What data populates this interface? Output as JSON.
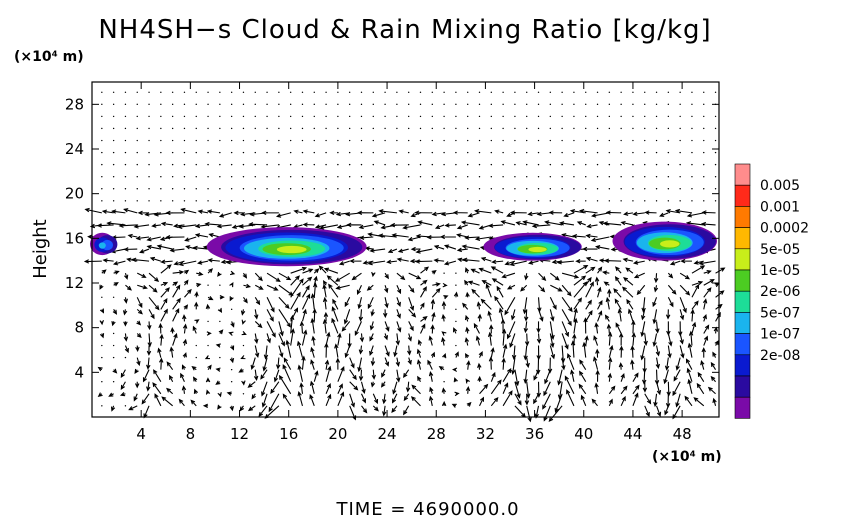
{
  "chart_data": {
    "type": "heatmap",
    "title": "NH4SH−s Cloud & Rain Mixing Ratio [kg/kg]",
    "ylabel": "Height",
    "x_unit": "(×10⁴ m)",
    "y_unit": "(×10⁴ m)",
    "footer": "TIME  =  4690000.0",
    "xlim": [
      0,
      51
    ],
    "ylim": [
      0,
      30
    ],
    "xticks": [
      4,
      8,
      12,
      16,
      20,
      24,
      28,
      32,
      36,
      40,
      44,
      48
    ],
    "yticks": [
      4,
      8,
      12,
      16,
      20,
      24,
      28
    ],
    "colorbar": {
      "labels": [
        "0.005",
        "0.001",
        "0.0002",
        "5e-05",
        "1e-05",
        "2e-06",
        "5e-07",
        "1e-07",
        "2e-08"
      ],
      "colors": [
        "#ff8c8c",
        "#ff2a1a",
        "#ff7a00",
        "#ffb800",
        "#c8ee1a",
        "#4ccc22",
        "#1ddd98",
        "#1ab4ee",
        "#1a55ff",
        "#0a1ad0",
        "#2a0aa0",
        "#7a0aa8"
      ]
    },
    "cloud_regions": [
      {
        "x_range": [
          0,
          2
        ],
        "y_range": [
          14.5,
          16.5
        ],
        "peak_level": "5e-07"
      },
      {
        "x_range": [
          9.5,
          22.5
        ],
        "y_range": [
          13.5,
          17
        ],
        "peak_level": "5e-05"
      },
      {
        "x_range": [
          32,
          40
        ],
        "y_range": [
          14,
          16.5
        ],
        "peak_level": "5e-05"
      },
      {
        "x_range": [
          42.5,
          51
        ],
        "y_range": [
          14,
          17.5
        ],
        "peak_level": "5e-05"
      }
    ]
  }
}
